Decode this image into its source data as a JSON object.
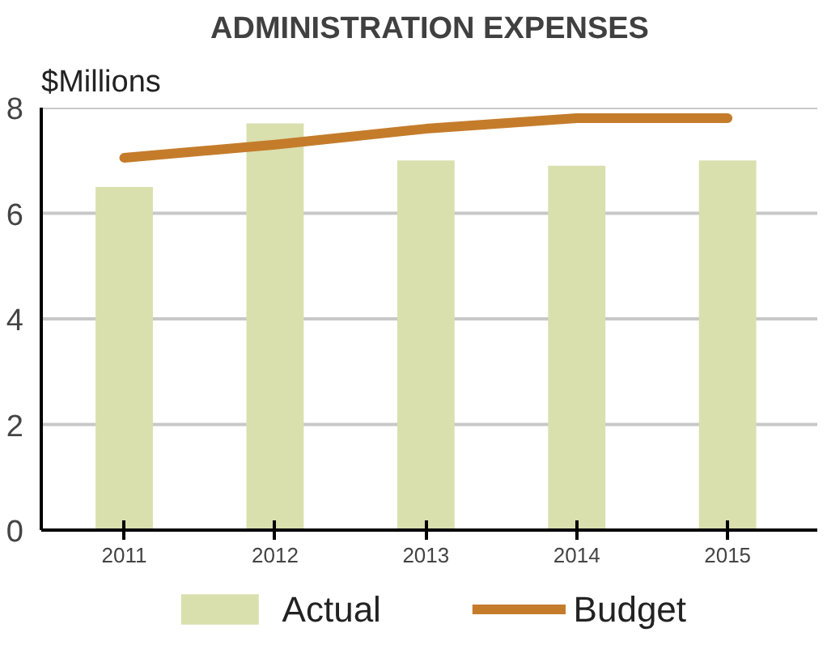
{
  "chart_data": {
    "type": "bar",
    "title": "ADMINISTRATION EXPENSES",
    "ylabel": "$Millions",
    "categories": [
      "2011",
      "2012",
      "2013",
      "2014",
      "2015"
    ],
    "series": [
      {
        "name": "Actual",
        "type": "bar",
        "color": "#dadfae",
        "values": [
          6.5,
          7.7,
          7.0,
          6.9,
          7.0
        ]
      },
      {
        "name": "Budget",
        "type": "line",
        "color": "#c47c2a",
        "values": [
          7.05,
          7.3,
          7.6,
          7.8,
          7.8
        ]
      }
    ],
    "ylim": [
      0,
      8
    ],
    "yticks": [
      0,
      2,
      4,
      6,
      8
    ],
    "grid": "y",
    "legend": "bottom",
    "marker": "none",
    "line_style": "solid"
  }
}
